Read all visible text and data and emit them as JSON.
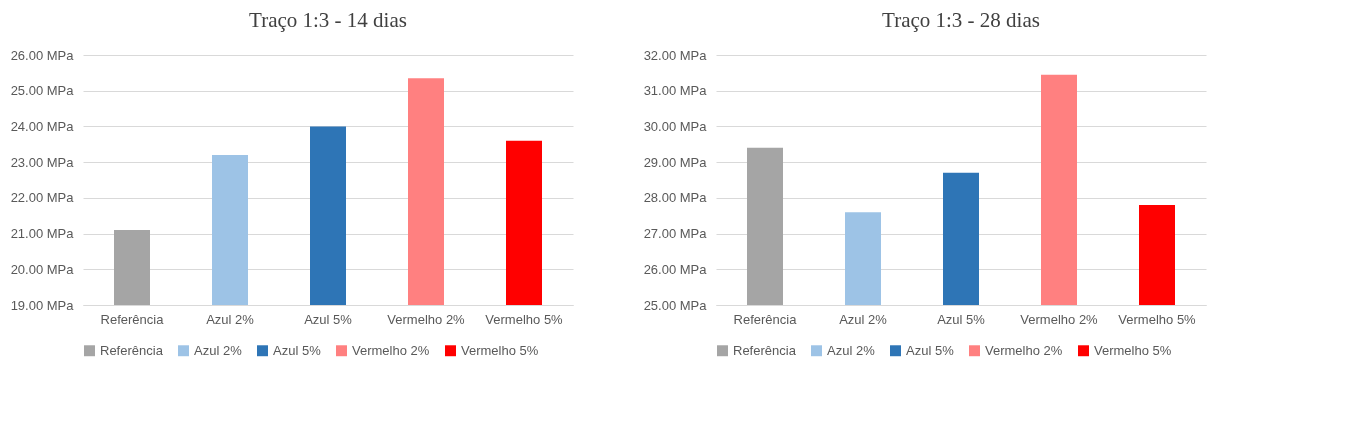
{
  "chart_data": [
    {
      "type": "bar",
      "title": "Traço 1:3 - 14 dias",
      "categories": [
        "Referência",
        "Azul 2%",
        "Azul 5%",
        "Vermelho 2%",
        "Vermelho 5%"
      ],
      "series": [
        {
          "name": "Referência",
          "color": "#a5a5a5",
          "values": [
            21.1,
            null,
            null,
            null,
            null
          ]
        },
        {
          "name": "Azul 2%",
          "color": "#9dc3e6",
          "values": [
            null,
            23.2,
            null,
            null,
            null
          ]
        },
        {
          "name": "Azul 5%",
          "color": "#2e75b6",
          "values": [
            null,
            null,
            24.0,
            null,
            null
          ]
        },
        {
          "name": "Vermelho 2%",
          "color": "#ff8080",
          "values": [
            null,
            null,
            null,
            25.35,
            null
          ]
        },
        {
          "name": "Vermelho 5%",
          "color": "#ff0000",
          "values": [
            null,
            null,
            null,
            null,
            23.6
          ]
        }
      ],
      "ylim": [
        19,
        26
      ],
      "yticks": [
        {
          "value": 19,
          "label": "19.00 MPa"
        },
        {
          "value": 20,
          "label": "20.00 MPa"
        },
        {
          "value": 21,
          "label": "21.00 MPa"
        },
        {
          "value": 22,
          "label": "22.00 MPa"
        },
        {
          "value": 23,
          "label": "23.00 MPa"
        },
        {
          "value": 24,
          "label": "24.00 MPa"
        },
        {
          "value": 25,
          "label": "25.00 MPa"
        },
        {
          "value": 26,
          "label": "26.00 MPa"
        }
      ],
      "grid": "y",
      "legend": "bottom"
    },
    {
      "type": "bar",
      "title": "Traço 1:3 - 28 dias",
      "categories": [
        "Referência",
        "Azul 2%",
        "Azul 5%",
        "Vermelho 2%",
        "Vermelho 5%"
      ],
      "series": [
        {
          "name": "Referência",
          "color": "#a5a5a5",
          "values": [
            29.4,
            null,
            null,
            null,
            null
          ]
        },
        {
          "name": "Azul 2%",
          "color": "#9dc3e6",
          "values": [
            null,
            27.6,
            null,
            null,
            null
          ]
        },
        {
          "name": "Azul 5%",
          "color": "#2e75b6",
          "values": [
            null,
            null,
            28.7,
            null,
            null
          ]
        },
        {
          "name": "Vermelho 2%",
          "color": "#ff8080",
          "values": [
            null,
            null,
            null,
            31.45,
            null
          ]
        },
        {
          "name": "Vermelho 5%",
          "color": "#ff0000",
          "values": [
            null,
            null,
            null,
            null,
            27.8
          ]
        }
      ],
      "ylim": [
        25,
        32
      ],
      "yticks": [
        {
          "value": 25,
          "label": "25.00 MPa"
        },
        {
          "value": 26,
          "label": "26.00 MPa"
        },
        {
          "value": 27,
          "label": "27.00 MPa"
        },
        {
          "value": 28,
          "label": "28.00 MPa"
        },
        {
          "value": 29,
          "label": "29.00 MPa"
        },
        {
          "value": 30,
          "label": "30.00 MPa"
        },
        {
          "value": 31,
          "label": "31.00 MPa"
        },
        {
          "value": 32,
          "label": "32.00 MPa"
        }
      ],
      "grid": "y",
      "legend": "bottom"
    }
  ]
}
